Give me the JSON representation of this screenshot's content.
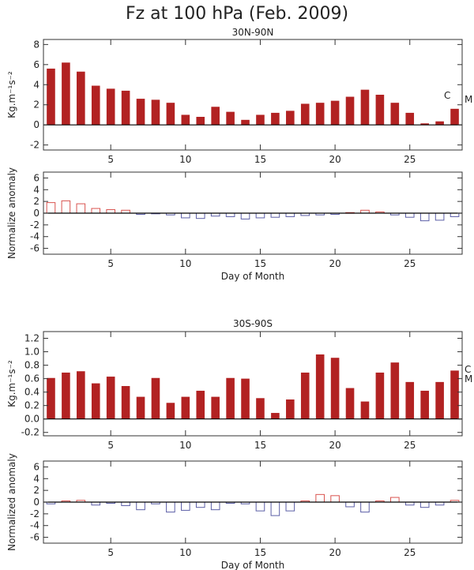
{
  "figure": {
    "title": "Fz at 100 hPa (Feb. 2009)"
  },
  "chart_data": [
    {
      "type": "bar",
      "title": "30N-90N",
      "ylabel": "Kg.m⁻¹s⁻²",
      "xlabel": "",
      "ylim": [
        -2.5,
        8.5
      ],
      "yticks": [
        -2,
        0,
        2,
        4,
        6,
        8
      ],
      "xlim": [
        0.5,
        28.5
      ],
      "xticks": [
        5,
        10,
        15,
        20,
        25
      ],
      "color": "#b22222",
      "fill": true,
      "markers": [
        "C",
        "M"
      ],
      "x": [
        1,
        2,
        3,
        4,
        5,
        6,
        7,
        8,
        9,
        10,
        11,
        12,
        13,
        14,
        15,
        16,
        17,
        18,
        19,
        20,
        21,
        22,
        23,
        24,
        25,
        26,
        27,
        28
      ],
      "values": [
        5.6,
        6.2,
        5.3,
        3.9,
        3.6,
        3.4,
        2.6,
        2.5,
        2.2,
        1.0,
        0.8,
        1.8,
        1.3,
        0.5,
        1.0,
        1.2,
        1.4,
        2.1,
        2.2,
        2.4,
        2.8,
        3.5,
        3.0,
        2.2,
        1.2,
        0.15,
        0.35,
        1.6
      ]
    },
    {
      "type": "bar",
      "title": "",
      "ylabel": "Normalize anomaly",
      "xlabel": "Day of Month",
      "ylim": [
        -7,
        7
      ],
      "yticks": [
        -6,
        -4,
        -2,
        0,
        2,
        4,
        6
      ],
      "xlim": [
        0.5,
        28.5
      ],
      "xticks": [
        5,
        10,
        15,
        20,
        25
      ],
      "positive_color": "#d9534f",
      "negative_color": "#5b5ea6",
      "fill": false,
      "x": [
        1,
        2,
        3,
        4,
        5,
        6,
        7,
        8,
        9,
        10,
        11,
        12,
        13,
        14,
        15,
        16,
        17,
        18,
        19,
        20,
        21,
        22,
        23,
        24,
        25,
        26,
        27,
        28
      ],
      "values": [
        1.8,
        2.1,
        1.6,
        0.8,
        0.6,
        0.5,
        -0.2,
        -0.1,
        -0.3,
        -0.8,
        -0.9,
        -0.5,
        -0.6,
        -1.0,
        -0.8,
        -0.7,
        -0.6,
        -0.4,
        -0.3,
        -0.2,
        0.1,
        0.5,
        0.2,
        -0.3,
        -0.7,
        -1.3,
        -1.2,
        -0.6
      ]
    },
    {
      "type": "bar",
      "title": "30S-90S",
      "ylabel": "Kg.m⁻¹s⁻²",
      "xlabel": "",
      "ylim": [
        -0.25,
        1.3
      ],
      "yticks": [
        -0.2,
        0.0,
        0.2,
        0.4,
        0.6,
        0.8,
        1.0,
        1.2
      ],
      "xlim": [
        0.5,
        28.5
      ],
      "xticks": [
        5,
        10,
        15,
        20,
        25
      ],
      "color": "#b22222",
      "fill": true,
      "markers": [
        "C",
        "M"
      ],
      "x": [
        1,
        2,
        3,
        4,
        5,
        6,
        7,
        8,
        9,
        10,
        11,
        12,
        13,
        14,
        15,
        16,
        17,
        18,
        19,
        20,
        21,
        22,
        23,
        24,
        25,
        26,
        27,
        28
      ],
      "values": [
        0.61,
        0.69,
        0.71,
        0.53,
        0.63,
        0.49,
        0.33,
        0.61,
        0.24,
        0.33,
        0.42,
        0.33,
        0.61,
        0.6,
        0.31,
        0.09,
        0.29,
        0.69,
        0.96,
        0.91,
        0.46,
        0.26,
        0.69,
        0.84,
        0.55,
        0.42,
        0.55,
        0.72
      ]
    },
    {
      "type": "bar",
      "title": "",
      "ylabel": "Normalized anomaly",
      "xlabel": "Day of Month",
      "ylim": [
        -7,
        7
      ],
      "yticks": [
        -6,
        -4,
        -2,
        0,
        2,
        4,
        6
      ],
      "xlim": [
        0.5,
        28.5
      ],
      "xticks": [
        5,
        10,
        15,
        20,
        25
      ],
      "positive_color": "#d9534f",
      "negative_color": "#5b5ea6",
      "fill": false,
      "x": [
        1,
        2,
        3,
        4,
        5,
        6,
        7,
        8,
        9,
        10,
        11,
        12,
        13,
        14,
        15,
        16,
        17,
        18,
        19,
        20,
        21,
        22,
        23,
        24,
        25,
        26,
        27,
        28
      ],
      "values": [
        -0.3,
        0.2,
        0.3,
        -0.5,
        -0.2,
        -0.6,
        -1.3,
        -0.3,
        -1.7,
        -1.4,
        -0.9,
        -1.3,
        -0.2,
        -0.3,
        -1.5,
        -2.3,
        -1.5,
        0.2,
        1.3,
        1.1,
        -0.8,
        -1.7,
        0.2,
        0.8,
        -0.5,
        -0.9,
        -0.5,
        0.3
      ]
    }
  ]
}
